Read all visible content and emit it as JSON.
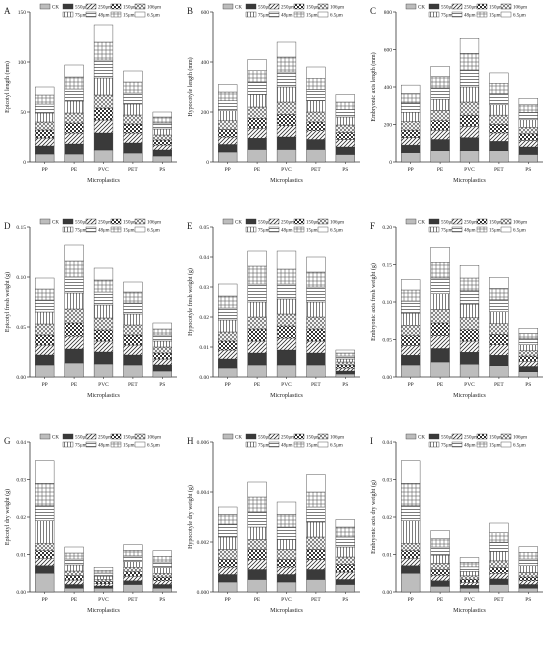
{
  "figure": {
    "legend_labels": [
      "CK",
      "550μm",
      "250μm",
      "150μm",
      "106μm",
      "75μm",
      "48μm",
      "15μm",
      "6.5μm"
    ],
    "legend_fills": [
      "#bdbdbd",
      "#3a3a3a",
      "hatch-diag",
      "hatch-checker",
      "hatch-cross",
      "hatch-vert",
      "hatch-horiz",
      "hatch-grid",
      "#ffffff"
    ]
  },
  "chart_data": [
    {
      "panel": "A",
      "type": "bar",
      "stacked": true,
      "xlabel": "Microplastics",
      "ylabel": "Epicotyl length (mm)",
      "categories": [
        "PP",
        "PE",
        "PVC",
        "PET",
        "PS"
      ],
      "ylim": [
        0,
        150
      ],
      "yticks": [
        0,
        50,
        100,
        150
      ],
      "yticklabels": [
        "0",
        "50",
        "100",
        "150"
      ],
      "series": [
        {
          "name": "CK",
          "values": [
            8,
            8,
            12,
            9,
            6
          ]
        },
        {
          "name": "550μm",
          "values": [
            8,
            10,
            17,
            10,
            6
          ]
        },
        {
          "name": "250μm",
          "values": [
            8,
            11,
            13,
            10,
            5
          ]
        },
        {
          "name": "150μm",
          "values": [
            8,
            10,
            12,
            9,
            5
          ]
        },
        {
          "name": "106μm",
          "values": [
            8,
            10,
            13,
            9,
            5
          ]
        },
        {
          "name": "75μm",
          "values": [
            9,
            12,
            17,
            11,
            6
          ]
        },
        {
          "name": "48μm",
          "values": [
            9,
            12,
            18,
            11,
            6
          ]
        },
        {
          "name": "15μm",
          "values": [
            9,
            12,
            18,
            11,
            6
          ]
        },
        {
          "name": "6.5μm",
          "values": [
            8,
            12,
            17,
            11,
            5
          ]
        }
      ]
    },
    {
      "panel": "B",
      "type": "bar",
      "stacked": true,
      "xlabel": "Microplastics",
      "ylabel": "Hypocotyle length (mm)",
      "categories": [
        "PP",
        "PE",
        "PVC",
        "PET",
        "PS"
      ],
      "ylim": [
        0,
        600
      ],
      "yticks": [
        0,
        200,
        400,
        600
      ],
      "yticklabels": [
        "0",
        "200",
        "400",
        "600"
      ],
      "series": [
        {
          "name": "CK",
          "values": [
            40,
            50,
            50,
            50,
            30
          ]
        },
        {
          "name": "550μm",
          "values": [
            30,
            45,
            50,
            40,
            30
          ]
        },
        {
          "name": "250μm",
          "values": [
            30,
            40,
            45,
            35,
            30
          ]
        },
        {
          "name": "150μm",
          "values": [
            30,
            40,
            45,
            35,
            28
          ]
        },
        {
          "name": "106μm",
          "values": [
            35,
            45,
            50,
            40,
            30
          ]
        },
        {
          "name": "75μm",
          "values": [
            40,
            50,
            60,
            45,
            32
          ]
        },
        {
          "name": "48μm",
          "values": [
            40,
            50,
            60,
            45,
            30
          ]
        },
        {
          "name": "15μm",
          "values": [
            35,
            45,
            60,
            45,
            30
          ]
        },
        {
          "name": "6.5μm",
          "values": [
            30,
            45,
            60,
            45,
            30
          ]
        }
      ]
    },
    {
      "panel": "C",
      "type": "bar",
      "stacked": true,
      "xlabel": "Microplastics",
      "ylabel": "Embryonic axis length (mm)",
      "categories": [
        "PP",
        "PE",
        "PVC",
        "PET",
        "PS"
      ],
      "ylim": [
        0,
        800
      ],
      "yticks": [
        0,
        200,
        400,
        600,
        800
      ],
      "yticklabels": [
        "0",
        "200",
        "400",
        "600",
        "800"
      ],
      "series": [
        {
          "name": "CK",
          "values": [
            50,
            60,
            60,
            60,
            40
          ]
        },
        {
          "name": "550μm",
          "values": [
            40,
            60,
            70,
            50,
            40
          ]
        },
        {
          "name": "250μm",
          "values": [
            40,
            50,
            60,
            45,
            35
          ]
        },
        {
          "name": "150μm",
          "values": [
            40,
            50,
            60,
            45,
            35
          ]
        },
        {
          "name": "106μm",
          "values": [
            45,
            55,
            70,
            50,
            35
          ]
        },
        {
          "name": "75μm",
          "values": [
            50,
            60,
            80,
            55,
            40
          ]
        },
        {
          "name": "48μm",
          "values": [
            50,
            60,
            90,
            60,
            40
          ]
        },
        {
          "name": "15μm",
          "values": [
            50,
            60,
            90,
            55,
            40
          ]
        },
        {
          "name": "6.5μm",
          "values": [
            45,
            55,
            80,
            55,
            35
          ]
        }
      ]
    },
    {
      "panel": "D",
      "type": "bar",
      "stacked": true,
      "xlabel": "Microplastics",
      "ylabel": "Epicotyl fresh weight (g)",
      "categories": [
        "PP",
        "PE",
        "PVC",
        "PET",
        "PS"
      ],
      "ylim": [
        0,
        0.15
      ],
      "yticks": [
        0,
        0.05,
        0.1,
        0.15
      ],
      "yticklabels": [
        "0.00",
        "0.05",
        "0.10",
        "0.15"
      ],
      "series": [
        {
          "name": "CK",
          "values": [
            0.012,
            0.014,
            0.013,
            0.012,
            0.006
          ]
        },
        {
          "name": "550μm",
          "values": [
            0.01,
            0.014,
            0.012,
            0.01,
            0.006
          ]
        },
        {
          "name": "250μm",
          "values": [
            0.01,
            0.013,
            0.011,
            0.01,
            0.006
          ]
        },
        {
          "name": "150μm",
          "values": [
            0.01,
            0.013,
            0.011,
            0.01,
            0.006
          ]
        },
        {
          "name": "106μm",
          "values": [
            0.011,
            0.014,
            0.012,
            0.01,
            0.006
          ]
        },
        {
          "name": "75μm",
          "values": [
            0.012,
            0.016,
            0.013,
            0.011,
            0.006
          ]
        },
        {
          "name": "48μm",
          "values": [
            0.012,
            0.016,
            0.013,
            0.011,
            0.006
          ]
        },
        {
          "name": "15μm",
          "values": [
            0.011,
            0.016,
            0.012,
            0.011,
            0.006
          ]
        },
        {
          "name": "6.5μm",
          "values": [
            0.011,
            0.016,
            0.012,
            0.01,
            0.006
          ]
        }
      ]
    },
    {
      "panel": "E",
      "type": "bar",
      "stacked": true,
      "xlabel": "Microplastics",
      "ylabel": "Hypocotyle fresh weight (g)",
      "categories": [
        "PP",
        "PE",
        "PVC",
        "PET",
        "PS"
      ],
      "ylim": [
        0,
        0.05
      ],
      "yticks": [
        0,
        0.01,
        0.02,
        0.03,
        0.04,
        0.05
      ],
      "yticklabels": [
        "0.00",
        "0.01",
        "0.02",
        "0.03",
        "0.04",
        "0.05"
      ],
      "series": [
        {
          "name": "CK",
          "values": [
            0.003,
            0.004,
            0.004,
            0.004,
            0.001
          ]
        },
        {
          "name": "550μm",
          "values": [
            0.003,
            0.004,
            0.005,
            0.004,
            0.001
          ]
        },
        {
          "name": "250μm",
          "values": [
            0.003,
            0.004,
            0.004,
            0.004,
            0.001
          ]
        },
        {
          "name": "150μm",
          "values": [
            0.003,
            0.004,
            0.004,
            0.004,
            0.001
          ]
        },
        {
          "name": "106μm",
          "values": [
            0.003,
            0.004,
            0.004,
            0.004,
            0.001
          ]
        },
        {
          "name": "75μm",
          "values": [
            0.004,
            0.005,
            0.005,
            0.005,
            0.001
          ]
        },
        {
          "name": "48μm",
          "values": [
            0.004,
            0.006,
            0.005,
            0.005,
            0.001
          ]
        },
        {
          "name": "15μm",
          "values": [
            0.004,
            0.006,
            0.005,
            0.005,
            0.001
          ]
        },
        {
          "name": "6.5μm",
          "values": [
            0.004,
            0.005,
            0.006,
            0.005,
            0.001
          ]
        }
      ]
    },
    {
      "panel": "F",
      "type": "bar",
      "stacked": true,
      "xlabel": "Microplastics",
      "ylabel": "Embryonic axis fresh weight (g)",
      "categories": [
        "PP",
        "PE",
        "PVC",
        "PET",
        "PS"
      ],
      "ylim": [
        0,
        0.2
      ],
      "yticks": [
        0,
        0.05,
        0.1,
        0.15,
        0.2
      ],
      "yticklabels": [
        "0.00",
        "0.05",
        "0.10",
        "0.15",
        "0.20"
      ],
      "series": [
        {
          "name": "CK",
          "values": [
            0.016,
            0.02,
            0.017,
            0.015,
            0.007
          ]
        },
        {
          "name": "550μm",
          "values": [
            0.013,
            0.018,
            0.016,
            0.014,
            0.007
          ]
        },
        {
          "name": "250μm",
          "values": [
            0.013,
            0.017,
            0.015,
            0.014,
            0.007
          ]
        },
        {
          "name": "150μm",
          "values": [
            0.013,
            0.017,
            0.015,
            0.014,
            0.007
          ]
        },
        {
          "name": "106μm",
          "values": [
            0.014,
            0.018,
            0.016,
            0.014,
            0.007
          ]
        },
        {
          "name": "75μm",
          "values": [
            0.016,
            0.021,
            0.018,
            0.016,
            0.008
          ]
        },
        {
          "name": "48μm",
          "values": [
            0.016,
            0.021,
            0.018,
            0.016,
            0.008
          ]
        },
        {
          "name": "15μm",
          "values": [
            0.015,
            0.021,
            0.017,
            0.015,
            0.007
          ]
        },
        {
          "name": "6.5μm",
          "values": [
            0.014,
            0.02,
            0.017,
            0.015,
            0.007
          ]
        }
      ]
    },
    {
      "panel": "G",
      "type": "bar",
      "stacked": true,
      "xlabel": "Microplastics",
      "ylabel": "Epicotyl dry weight (g)",
      "categories": [
        "PP",
        "PE",
        "PVC",
        "PET",
        "PS"
      ],
      "ylim": [
        0,
        0.04
      ],
      "yticks": [
        0,
        0.01,
        0.02,
        0.03,
        0.04
      ],
      "yticklabels": [
        "0.00",
        "0.01",
        "0.02",
        "0.03",
        "0.04"
      ],
      "series": [
        {
          "name": "CK",
          "values": [
            0.005,
            0.001,
            0.001,
            0.002,
            0.001
          ]
        },
        {
          "name": "550μm",
          "values": [
            0.002,
            0.001,
            0.0006,
            0.001,
            0.001
          ]
        },
        {
          "name": "250μm",
          "values": [
            0.002,
            0.0012,
            0.0006,
            0.0012,
            0.001
          ]
        },
        {
          "name": "150μm",
          "values": [
            0.002,
            0.0012,
            0.0006,
            0.0012,
            0.001
          ]
        },
        {
          "name": "106μm",
          "values": [
            0.002,
            0.0012,
            0.0006,
            0.0012,
            0.001
          ]
        },
        {
          "name": "75μm",
          "values": [
            0.006,
            0.0016,
            0.0008,
            0.0015,
            0.0015
          ]
        },
        {
          "name": "48μm",
          "values": [
            0.004,
            0.0016,
            0.0008,
            0.0015,
            0.0015
          ]
        },
        {
          "name": "15μm",
          "values": [
            0.006,
            0.0016,
            0.0008,
            0.0015,
            0.0015
          ]
        },
        {
          "name": "6.5μm",
          "values": [
            0.006,
            0.0016,
            0.0008,
            0.0015,
            0.0015
          ]
        }
      ]
    },
    {
      "panel": "H",
      "type": "bar",
      "stacked": true,
      "xlabel": "Microplastics",
      "ylabel": "Hypocotyle dry weight (g)",
      "categories": [
        "PP",
        "PE",
        "PVC",
        "PET",
        "PS"
      ],
      "ylim": [
        0,
        0.006
      ],
      "yticks": [
        0,
        0.002,
        0.004,
        0.006
      ],
      "yticklabels": [
        "0.000",
        "0.002",
        "0.004",
        "0.006"
      ],
      "series": [
        {
          "name": "CK",
          "values": [
            0.0004,
            0.0005,
            0.0004,
            0.0005,
            0.0003
          ]
        },
        {
          "name": "550μm",
          "values": [
            0.0003,
            0.0004,
            0.0003,
            0.0004,
            0.0002
          ]
        },
        {
          "name": "250μm",
          "values": [
            0.0003,
            0.0004,
            0.0003,
            0.0004,
            0.0003
          ]
        },
        {
          "name": "150μm",
          "values": [
            0.0003,
            0.0004,
            0.0003,
            0.0004,
            0.0003
          ]
        },
        {
          "name": "106μm",
          "values": [
            0.0004,
            0.0004,
            0.0004,
            0.0005,
            0.0003
          ]
        },
        {
          "name": "75μm",
          "values": [
            0.0005,
            0.0005,
            0.0004,
            0.0006,
            0.0004
          ]
        },
        {
          "name": "48μm",
          "values": [
            0.0005,
            0.0006,
            0.0005,
            0.0006,
            0.0004
          ]
        },
        {
          "name": "15μm",
          "values": [
            0.0004,
            0.0006,
            0.0005,
            0.0006,
            0.0004
          ]
        },
        {
          "name": "6.5μm",
          "values": [
            0.0003,
            0.0006,
            0.0005,
            0.0007,
            0.0003
          ]
        }
      ]
    },
    {
      "panel": "I",
      "type": "bar",
      "stacked": true,
      "xlabel": "Microplastics",
      "ylabel": "Embryonic axis dry weight (g)",
      "categories": [
        "PP",
        "PE",
        "PVC",
        "PET",
        "PS"
      ],
      "ylim": [
        0,
        0.04
      ],
      "yticks": [
        0,
        0.01,
        0.02,
        0.03,
        0.04
      ],
      "yticklabels": [
        "0.00",
        "0.01",
        "0.02",
        "0.03",
        "0.04"
      ],
      "series": [
        {
          "name": "CK",
          "values": [
            0.005,
            0.0015,
            0.001,
            0.002,
            0.001
          ]
        },
        {
          "name": "550μm",
          "values": [
            0.002,
            0.0015,
            0.0008,
            0.0015,
            0.001
          ]
        },
        {
          "name": "250μm",
          "values": [
            0.002,
            0.0015,
            0.0008,
            0.0015,
            0.001
          ]
        },
        {
          "name": "150μm",
          "values": [
            0.002,
            0.0015,
            0.0008,
            0.0015,
            0.001
          ]
        },
        {
          "name": "106μm",
          "values": [
            0.002,
            0.0016,
            0.0009,
            0.0018,
            0.0012
          ]
        },
        {
          "name": "75μm",
          "values": [
            0.006,
            0.0022,
            0.0012,
            0.0025,
            0.0018
          ]
        },
        {
          "name": "48μm",
          "values": [
            0.004,
            0.0022,
            0.0012,
            0.0025,
            0.0018
          ]
        },
        {
          "name": "15μm",
          "values": [
            0.006,
            0.0022,
            0.0012,
            0.0025,
            0.0018
          ]
        },
        {
          "name": "6.5μm",
          "values": [
            0.006,
            0.0022,
            0.0013,
            0.0026,
            0.0015
          ]
        }
      ]
    }
  ]
}
